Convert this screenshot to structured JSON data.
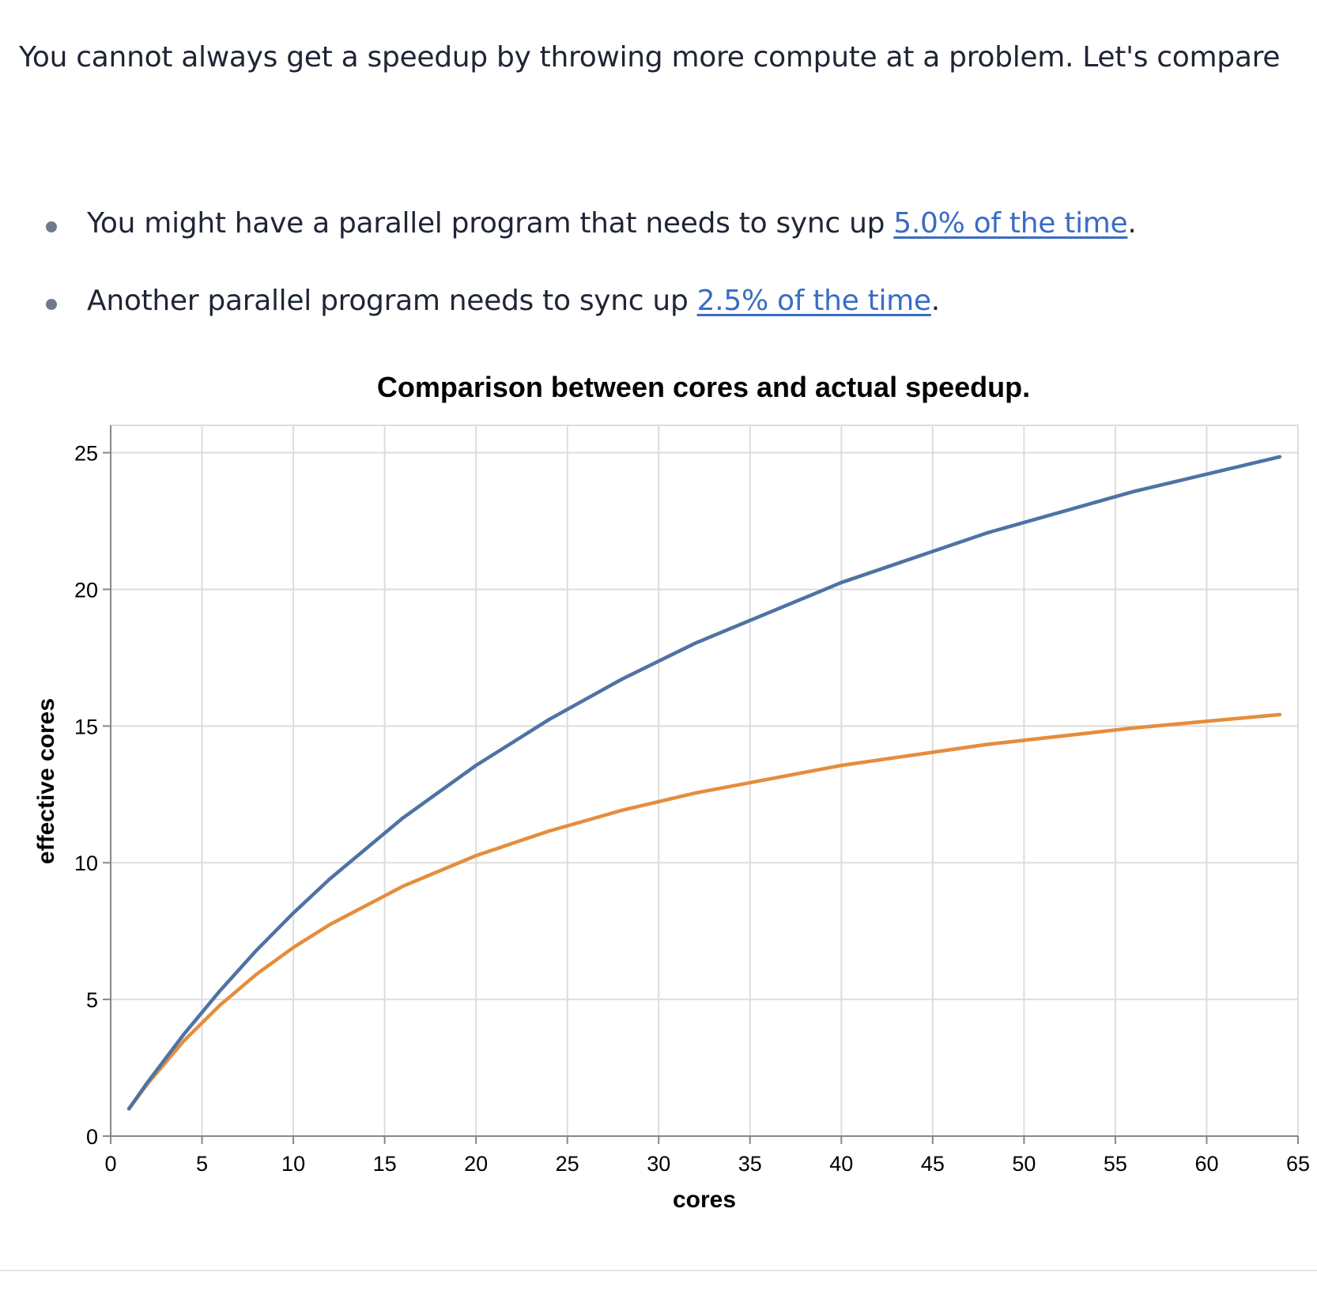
{
  "paragraph": "You cannot always get a speedup by throwing more compute at a problem. Let's compare",
  "bullets": [
    {
      "text": "You might have a parallel program that needs to sync up ",
      "link": "5.0% of the time",
      "after": "."
    },
    {
      "text": "Another parallel program needs to sync up ",
      "link": "2.5% of the time",
      "after": "."
    }
  ],
  "chart_data": {
    "type": "line",
    "title": "Comparison between cores and actual speedup.",
    "x_label": "cores",
    "y_label": "effective cores",
    "x": [
      1,
      2,
      4,
      6,
      8,
      10,
      12,
      16,
      20,
      24,
      28,
      32,
      40,
      48,
      56,
      64
    ],
    "series": [
      {
        "color": "#4e73a3",
        "values": [
          1,
          1.95,
          3.72,
          5.33,
          6.81,
          8.16,
          9.41,
          11.64,
          13.56,
          15.24,
          16.72,
          18.03,
          20.25,
          22.07,
          23.58,
          24.85
        ]
      },
      {
        "color": "#e58d3c",
        "values": [
          1,
          1.9,
          3.48,
          4.8,
          5.93,
          6.9,
          7.74,
          9.14,
          10.26,
          11.16,
          11.92,
          12.55,
          13.56,
          14.33,
          14.93,
          15.42
        ]
      }
    ],
    "xlim": [
      0,
      65
    ],
    "xticks": [
      0,
      5,
      10,
      15,
      20,
      25,
      30,
      35,
      40,
      45,
      50,
      55,
      60,
      65
    ],
    "ylim": [
      0,
      26
    ],
    "yticks": [
      0,
      5,
      10,
      15,
      20,
      25
    ],
    "grid": true
  }
}
